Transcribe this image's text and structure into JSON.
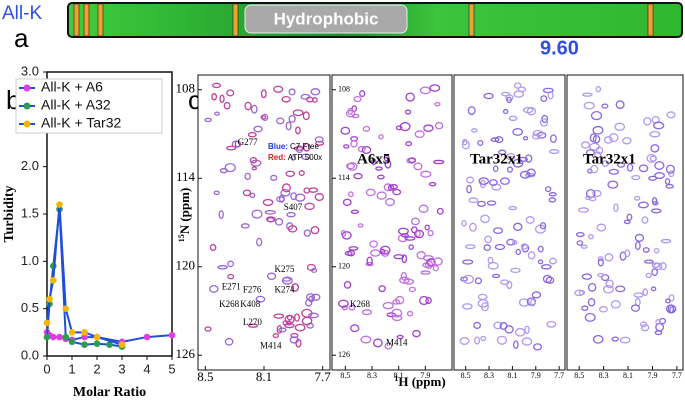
{
  "panel_a": {
    "label": "a",
    "name": "All-K",
    "region": "Hydrophobic",
    "value": "9.60"
  },
  "chart_data": {
    "type": "line",
    "label": "b",
    "xlabel": "Molar Ratio",
    "ylabel": "Turbidity",
    "xlim": [
      0,
      5
    ],
    "ylim": [
      0,
      3
    ],
    "xticks": [
      0,
      1,
      2,
      3,
      4,
      5
    ],
    "yticks": [
      {
        "value": 0,
        "label": "0.0"
      },
      0.5,
      {
        "value": 1,
        "label": "1.0"
      },
      1.5,
      {
        "value": 2,
        "label": "2.0"
      },
      2.5,
      {
        "value": 3,
        "label": "3.0"
      }
    ],
    "line_color": "#1f4fd8",
    "legend": "upper left",
    "series": [
      {
        "name": "All-K + A6",
        "color": "#e33be3",
        "x": [
          0,
          0.1,
          0.25,
          0.5,
          0.75,
          1,
          1.5,
          2,
          3,
          4,
          5
        ],
        "values": [
          0.25,
          0.22,
          0.2,
          0.2,
          0.18,
          0.17,
          0.2,
          0.2,
          0.15,
          0.2,
          0.22
        ]
      },
      {
        "name": "All-K + A32",
        "color": "#2a9d4e",
        "x": [
          0,
          0.1,
          0.25,
          0.5,
          0.75,
          1,
          1.5,
          2,
          2.5,
          3
        ],
        "values": [
          0.2,
          0.55,
          0.95,
          1.55,
          0.2,
          0.15,
          0.12,
          0.13,
          0.12,
          0.1
        ]
      },
      {
        "name": "All-K + Tar32",
        "color": "#f2b705",
        "x": [
          0,
          0.1,
          0.25,
          0.5,
          0.75,
          1,
          1.5,
          2,
          3
        ],
        "values": [
          0.35,
          0.6,
          0.8,
          1.6,
          0.5,
          0.25,
          0.25,
          0.2,
          0.12
        ]
      }
    ]
  },
  "panel_c": {
    "label": "c",
    "ylabel_sup": "15",
    "ylabel": "N (ppm)",
    "xlabel_sup": "1",
    "xlabel": "H (ppm)",
    "legend_blue": "Blue:",
    "legend_blue_text": "C7 Free",
    "legend_red": "Red:",
    "legend_red_text": "ATP 500x",
    "spectra": [
      {
        "xlim": [
          8.55,
          7.65
        ],
        "ylim": [
          107,
          127
        ],
        "xticks": [
          8.5,
          8.1,
          7.7
        ],
        "yticks": [
          108,
          114,
          120,
          126
        ],
        "annotations": [
          "G277",
          "S407",
          "K275",
          "E271",
          "F276",
          "K274",
          "K268",
          "K408",
          "L270",
          "M414"
        ]
      },
      {
        "title": "A6x5",
        "xlim": [
          8.6,
          7.7
        ],
        "ylim": [
          107,
          127
        ],
        "xticks": [
          8.5,
          8.3,
          8.1,
          7.9
        ],
        "yticks": [
          108,
          114,
          120,
          126
        ],
        "annotations": [
          "K268",
          "M414"
        ]
      },
      {
        "title": "Tar32x1",
        "xlim": [
          8.6,
          7.65
        ],
        "ylim": [
          107,
          127
        ],
        "xticks": [
          8.5,
          8.3,
          8.1,
          7.9,
          7.7
        ],
        "yticks": [],
        "annotations": []
      },
      {
        "title": "Tar32x1",
        "xlim": [
          8.6,
          7.65
        ],
        "ylim": [
          107,
          127
        ],
        "xticks": [
          8.5,
          8.3,
          8.1,
          7.9,
          7.7
        ],
        "yticks": [],
        "annotations": []
      }
    ]
  }
}
